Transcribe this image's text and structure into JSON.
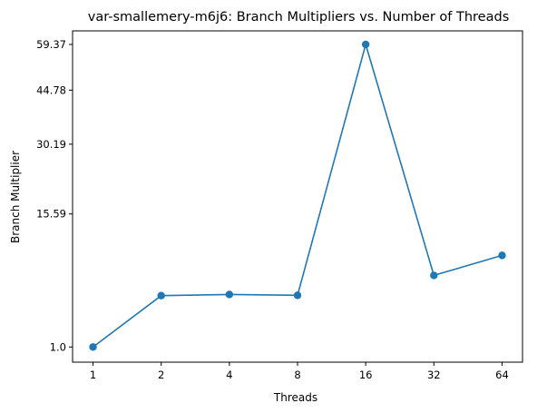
{
  "chart_data": {
    "type": "line",
    "title": "var-smallemery-m6j6: Branch Multipliers vs. Number of Threads",
    "xlabel": "Threads",
    "ylabel": "Branch Multiplier",
    "x_scale": "log2",
    "y_scale": "sqrt",
    "categories": [
      "1",
      "2",
      "4",
      "8",
      "16",
      "32",
      "64"
    ],
    "x": [
      1,
      2,
      4,
      8,
      16,
      32,
      64
    ],
    "y_ticks": [
      1.0,
      15.59,
      30.19,
      44.78,
      59.37
    ],
    "y_tick_labels": [
      "1.0",
      "15.59",
      "30.19",
      "44.78",
      "59.37"
    ],
    "ylim": [
      0.44,
      64.1
    ],
    "grid": false,
    "legend": "none",
    "series": [
      {
        "values": [
          1.0,
          4.57,
          4.68,
          4.6,
          59.37,
          6.69,
          9.18
        ],
        "color": "#1f77b4",
        "marker": "circle"
      }
    ]
  }
}
